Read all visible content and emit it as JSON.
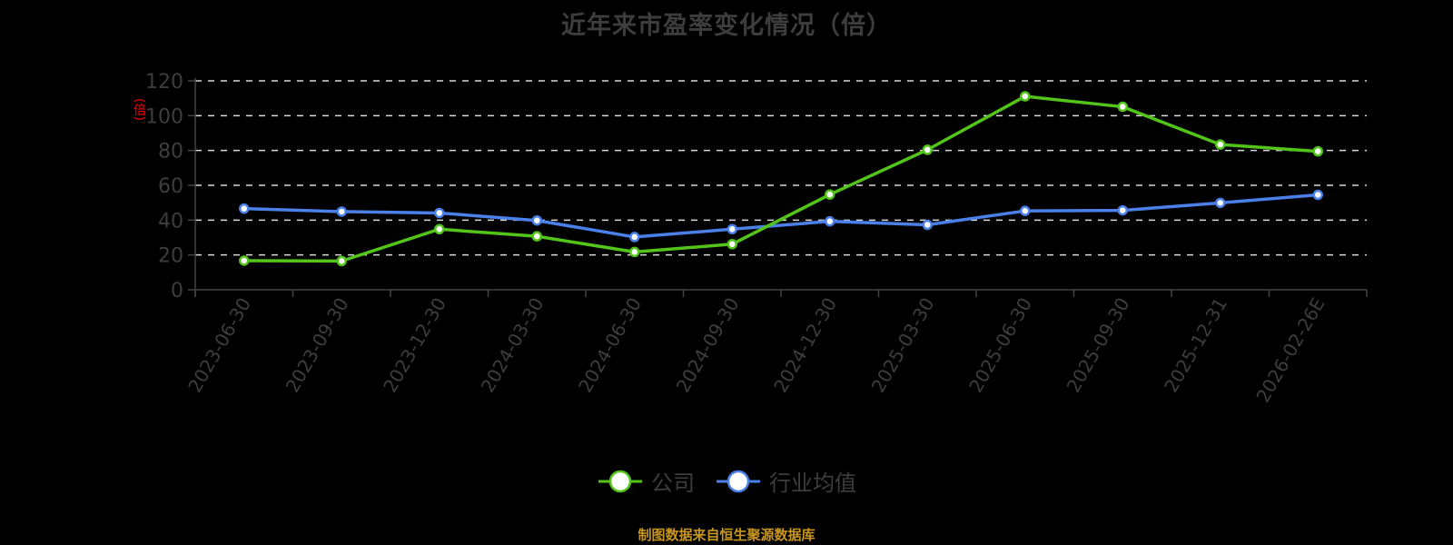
{
  "title": "近年来市盈率变化情况（倍）",
  "footer": "制图数据来自恒生聚源数据库",
  "legend": [
    {
      "label": "公司",
      "color": "#52c41a"
    },
    {
      "label": "行业均值",
      "color": "#4a80e8"
    }
  ],
  "chart_data": {
    "type": "line",
    "title": "近年来市盈率变化情况（倍）",
    "xlabel": "",
    "ylabel": "(倍)",
    "ylim": [
      0,
      120
    ],
    "yticks": [
      0,
      20,
      40,
      60,
      80,
      100,
      120
    ],
    "grid": true,
    "legend_position": "bottom",
    "categories": [
      "2023-06-30",
      "2023-09-30",
      "2023-12-30",
      "2024-03-30",
      "2024-06-30",
      "2024-09-30",
      "2024-12-30",
      "2025-03-30",
      "2025-06-30",
      "2025-09-30",
      "2025-12-31",
      "2026-02-26E"
    ],
    "series": [
      {
        "name": "公司",
        "color": "#52c41a",
        "values": [
          16.7,
          16.5,
          34.8,
          30.7,
          21.7,
          26.2,
          54.7,
          80.4,
          111.1,
          105.1,
          83.4,
          79.5
        ]
      },
      {
        "name": "行业均值",
        "color": "#4a80e8",
        "values": [
          46.6,
          44.9,
          44.1,
          39.8,
          30.3,
          34.8,
          39.3,
          37.3,
          45.3,
          45.6,
          49.9,
          54.5
        ]
      }
    ]
  }
}
